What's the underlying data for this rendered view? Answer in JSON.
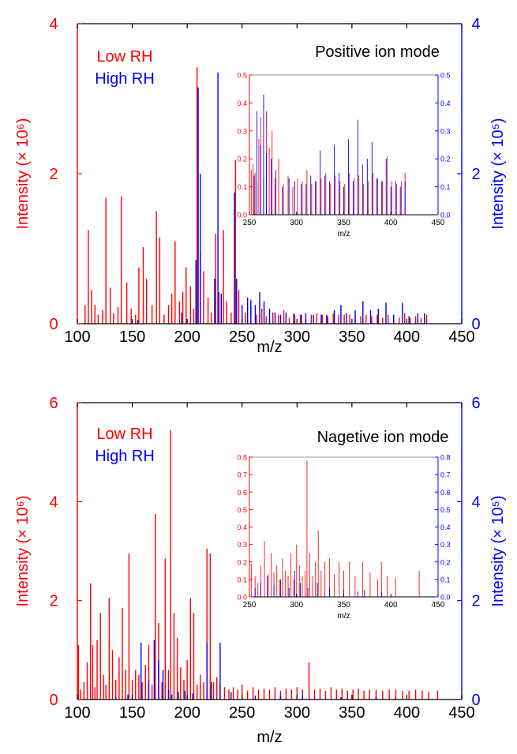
{
  "colors": {
    "low": "#ff0000",
    "high": "#0000ff",
    "axis": "#000000",
    "inset_axis": "#999999"
  },
  "chart_data": [
    {
      "type": "bar",
      "panel": "top",
      "xlabel": "m/z",
      "ylabel_left": "Intensity (× 10⁶)",
      "ylabel_right": "Intensity (× 10⁵)",
      "xlim": [
        100,
        450
      ],
      "ylim_left": [
        0,
        4
      ],
      "ylim_right": [
        0,
        4
      ],
      "xticks": [
        "100",
        "150",
        "200",
        "250",
        "300",
        "350",
        "400",
        "450"
      ],
      "yticks_left": [
        "0",
        "2",
        "4"
      ],
      "yticks_right": [
        "0",
        "2",
        "4"
      ],
      "legend": [
        "Low RH",
        "High RH"
      ],
      "annotation": "Positive ion mode",
      "series": [
        {
          "name": "Low RH",
          "axis": "left",
          "x": [
            107,
            110,
            113,
            116,
            119,
            123,
            126,
            130,
            133,
            137,
            140,
            145,
            149,
            153,
            156,
            160,
            163,
            168,
            172,
            175,
            179,
            183,
            186,
            189,
            193,
            196,
            199,
            203,
            206,
            209,
            212,
            215,
            219,
            222,
            226,
            229,
            233,
            236,
            240,
            244,
            247,
            253,
            258,
            263,
            268,
            272,
            278,
            283,
            288,
            293,
            298,
            303,
            308,
            313,
            318,
            323,
            328,
            333,
            338,
            343,
            348,
            353,
            358,
            363,
            368,
            373,
            378,
            383,
            388,
            393,
            398,
            403,
            408,
            413,
            418
          ],
          "y": [
            0.25,
            1.25,
            0.45,
            0.25,
            0.12,
            0.18,
            1.68,
            0.48,
            0.14,
            0.22,
            1.7,
            0.55,
            0.2,
            0.12,
            0.75,
            1.02,
            0.6,
            0.25,
            1.5,
            1.15,
            0.12,
            0.25,
            0.4,
            1.1,
            0.3,
            0.42,
            0.75,
            0.5,
            0.2,
            3.42,
            0.95,
            0.7,
            0.35,
            0.15,
            1.2,
            0.42,
            1.25,
            0.3,
            0.15,
            2.18,
            0.45,
            0.15,
            0.32,
            0.12,
            0.2,
            0.1,
            0.15,
            0.12,
            0.18,
            0.08,
            0.12,
            0.12,
            0.08,
            0.12,
            0.14,
            0.12,
            0.1,
            0.14,
            0.12,
            0.12,
            0.12,
            0.08,
            0.1,
            0.12,
            0.1,
            0.12,
            0.08,
            0.12,
            0.1,
            0.08,
            0.14,
            0.08,
            0.1,
            0.08,
            0.12
          ]
        },
        {
          "name": "High RH",
          "axis": "right",
          "x": [
            155,
            195,
            208,
            210,
            212,
            225,
            228,
            231,
            243,
            245,
            250,
            255,
            258,
            262,
            266,
            270,
            275,
            280,
            285,
            290,
            297,
            304,
            308,
            315,
            322,
            327,
            334,
            340,
            345,
            353,
            360,
            367,
            374,
            381,
            388,
            396,
            402,
            410,
            416
          ],
          "y": [
            0.05,
            0.15,
            0.85,
            3.15,
            2.0,
            0.6,
            3.35,
            0.4,
            1.75,
            0.6,
            0.25,
            0.35,
            0.3,
            0.25,
            0.42,
            0.3,
            0.2,
            0.15,
            0.12,
            0.15,
            0.14,
            0.12,
            0.14,
            0.12,
            0.12,
            0.12,
            0.18,
            0.25,
            0.14,
            0.18,
            0.3,
            0.18,
            0.2,
            0.28,
            0.12,
            0.28,
            0.1,
            0.14,
            0.14
          ]
        }
      ],
      "inset": {
        "xlim": [
          250,
          450
        ],
        "ylim": [
          0,
          0.5
        ],
        "xlabel": "m/z",
        "xticks": [
          "250",
          "300",
          "350",
          "400",
          "450"
        ],
        "yticks": [
          "0.0",
          "0.1",
          "0.2",
          "0.3",
          "0.4",
          "0.5"
        ],
        "series": [
          {
            "name": "Low RH",
            "x": [
              252,
              254,
              256,
              258,
              260,
              262,
              265,
              268,
              271,
              274,
              277,
              281,
              286,
              291,
              296,
              301,
              306,
              311,
              316,
              321,
              326,
              331,
              336,
              341,
              346,
              351,
              356,
              361,
              366,
              371,
              376,
              381,
              386,
              391,
              396,
              401,
              406,
              411,
              415
            ],
            "y": [
              0.16,
              0.18,
              0.15,
              0.12,
              0.27,
              0.35,
              0.13,
              0.37,
              0.24,
              0.3,
              0.13,
              0.2,
              0.11,
              0.14,
              0.1,
              0.13,
              0.12,
              0.16,
              0.11,
              0.12,
              0.13,
              0.15,
              0.11,
              0.14,
              0.12,
              0.11,
              0.15,
              0.13,
              0.14,
              0.11,
              0.12,
              0.15,
              0.13,
              0.12,
              0.21,
              0.12,
              0.11,
              0.12,
              0.15
            ]
          },
          {
            "name": "High RH",
            "x": [
              255,
              258,
              262,
              265,
              268,
              273,
              278,
              285,
              292,
              298,
              305,
              310,
              315,
              320,
              325,
              330,
              335,
              340,
              345,
              350,
              355,
              360,
              365,
              370,
              375,
              380,
              385,
              390,
              395,
              400,
              405,
              410,
              415
            ],
            "y": [
              0.14,
              0.37,
              0.25,
              0.43,
              0.22,
              0.2,
              0.16,
              0.1,
              0.13,
              0.12,
              0.11,
              0.11,
              0.14,
              0.12,
              0.23,
              0.14,
              0.12,
              0.25,
              0.15,
              0.1,
              0.27,
              0.12,
              0.34,
              0.18,
              0.2,
              0.26,
              0.13,
              0.12,
              0.2,
              0.1,
              0.12,
              0.1,
              0.12
            ]
          }
        ]
      }
    },
    {
      "type": "bar",
      "panel": "bottom",
      "xlabel": "m/z",
      "ylabel_left": "Intensity (× 10⁶)",
      "ylabel_right": "Intensity (× 10⁵)",
      "xlim": [
        100,
        450
      ],
      "ylim_left": [
        0,
        6
      ],
      "ylim_right": [
        0,
        6
      ],
      "xticks": [
        "100",
        "150",
        "200",
        "250",
        "300",
        "350",
        "400",
        "450"
      ],
      "yticks_left": [
        "0",
        "2",
        "4",
        "6"
      ],
      "yticks_right": [
        "0",
        "2",
        "4",
        "6"
      ],
      "legend": [
        "Low RH",
        "High RH"
      ],
      "annotation": "Nagetive ion mode",
      "series": [
        {
          "name": "Low RH",
          "axis": "left",
          "x": [
            101,
            103,
            106,
            109,
            112,
            114,
            116,
            118,
            121,
            124,
            126,
            129,
            132,
            135,
            138,
            141,
            144,
            147,
            150,
            153,
            156,
            159,
            162,
            165,
            168,
            171,
            174,
            177,
            180,
            183,
            185,
            188,
            191,
            194,
            197,
            200,
            203,
            206,
            209,
            212,
            215,
            218,
            221,
            224,
            227,
            230,
            234,
            238,
            242,
            246,
            250,
            255,
            260,
            265,
            270,
            275,
            280,
            285,
            290,
            295,
            300,
            305,
            311,
            316,
            321,
            326,
            331,
            336,
            341,
            346,
            351,
            356,
            361,
            366,
            372,
            378,
            384,
            390,
            396,
            402,
            408,
            414,
            420,
            428
          ],
          "y": [
            1.1,
            0.2,
            0.35,
            0.75,
            2.35,
            1.1,
            0.25,
            1.2,
            1.75,
            0.5,
            0.3,
            2.05,
            1.0,
            0.4,
            0.85,
            1.85,
            0.6,
            2.95,
            0.4,
            0.6,
            0.5,
            0.35,
            0.7,
            1.1,
            0.3,
            3.75,
            1.55,
            0.35,
            2.85,
            0.6,
            5.45,
            1.75,
            1.25,
            0.65,
            0.4,
            0.8,
            2.05,
            1.75,
            0.3,
            0.5,
            0.35,
            3.05,
            2.95,
            0.35,
            0.45,
            0.3,
            0.25,
            0.2,
            0.25,
            0.2,
            0.3,
            0.18,
            0.25,
            0.2,
            0.22,
            0.2,
            0.25,
            0.18,
            0.22,
            0.2,
            0.25,
            0.2,
            0.75,
            0.2,
            0.22,
            0.18,
            0.25,
            0.2,
            0.22,
            0.18,
            0.2,
            0.22,
            0.18,
            0.2,
            0.2,
            0.18,
            0.2,
            0.2,
            0.18,
            0.18,
            0.2,
            0.18,
            0.15,
            0.18
          ]
        },
        {
          "name": "High RH",
          "axis": "right",
          "x": [
            135,
            146,
            158,
            165,
            170,
            174,
            178,
            183,
            186,
            192,
            198,
            205,
            218,
            222,
            230,
            240,
            262,
            285,
            305,
            340,
            372
          ],
          "y": [
            0.05,
            0.1,
            1.15,
            0.4,
            1.2,
            0.8,
            0.6,
            0.2,
            0.1,
            0.15,
            0.18,
            0.12,
            1.15,
            0.35,
            1.15,
            0.15,
            0.08,
            0.08,
            0.1,
            0.05,
            0.05
          ]
        }
      ],
      "inset": {
        "xlim": [
          250,
          450
        ],
        "ylim": [
          0,
          0.8
        ],
        "xlabel": "m/z",
        "xticks": [
          "250",
          "300",
          "350",
          "400",
          "450"
        ],
        "yticks": [
          "0.0",
          "0.1",
          "0.2",
          "0.3",
          "0.4",
          "0.5",
          "0.6",
          "0.7",
          "0.8"
        ],
        "series": [
          {
            "name": "Low RH",
            "x": [
              252,
              256,
              259,
              262,
              266,
              270,
              273,
              276,
              279,
              282,
              285,
              288,
              291,
              294,
              297,
              300,
              303,
              306,
              309,
              311,
              314,
              317,
              320,
              323,
              326,
              330,
              335,
              340,
              345,
              350,
              356,
              362,
              370,
              378,
              386,
              390,
              396,
              405,
              430
            ],
            "y": [
              0.19,
              0.12,
              0.08,
              0.18,
              0.32,
              0.13,
              0.25,
              0.14,
              0.18,
              0.1,
              0.22,
              0.15,
              0.12,
              0.25,
              0.1,
              0.3,
              0.18,
              0.12,
              0.15,
              0.78,
              0.25,
              0.12,
              0.2,
              0.38,
              0.15,
              0.2,
              0.22,
              0.13,
              0.2,
              0.15,
              0.2,
              0.12,
              0.2,
              0.14,
              0.1,
              0.2,
              0.12,
              0.11,
              0.15
            ]
          },
          {
            "name": "High RH",
            "x": [
              256,
              262,
              269,
              276,
              283,
              292,
              298,
              304,
              312,
              322,
              335,
              350,
              365,
              372,
              390
            ],
            "y": [
              0.05,
              0.08,
              0.12,
              0.07,
              0.1,
              0.05,
              0.15,
              0.08,
              0.05,
              0.08,
              0.05,
              0.04,
              0.03,
              0.04,
              0.03
            ]
          }
        ]
      }
    }
  ]
}
